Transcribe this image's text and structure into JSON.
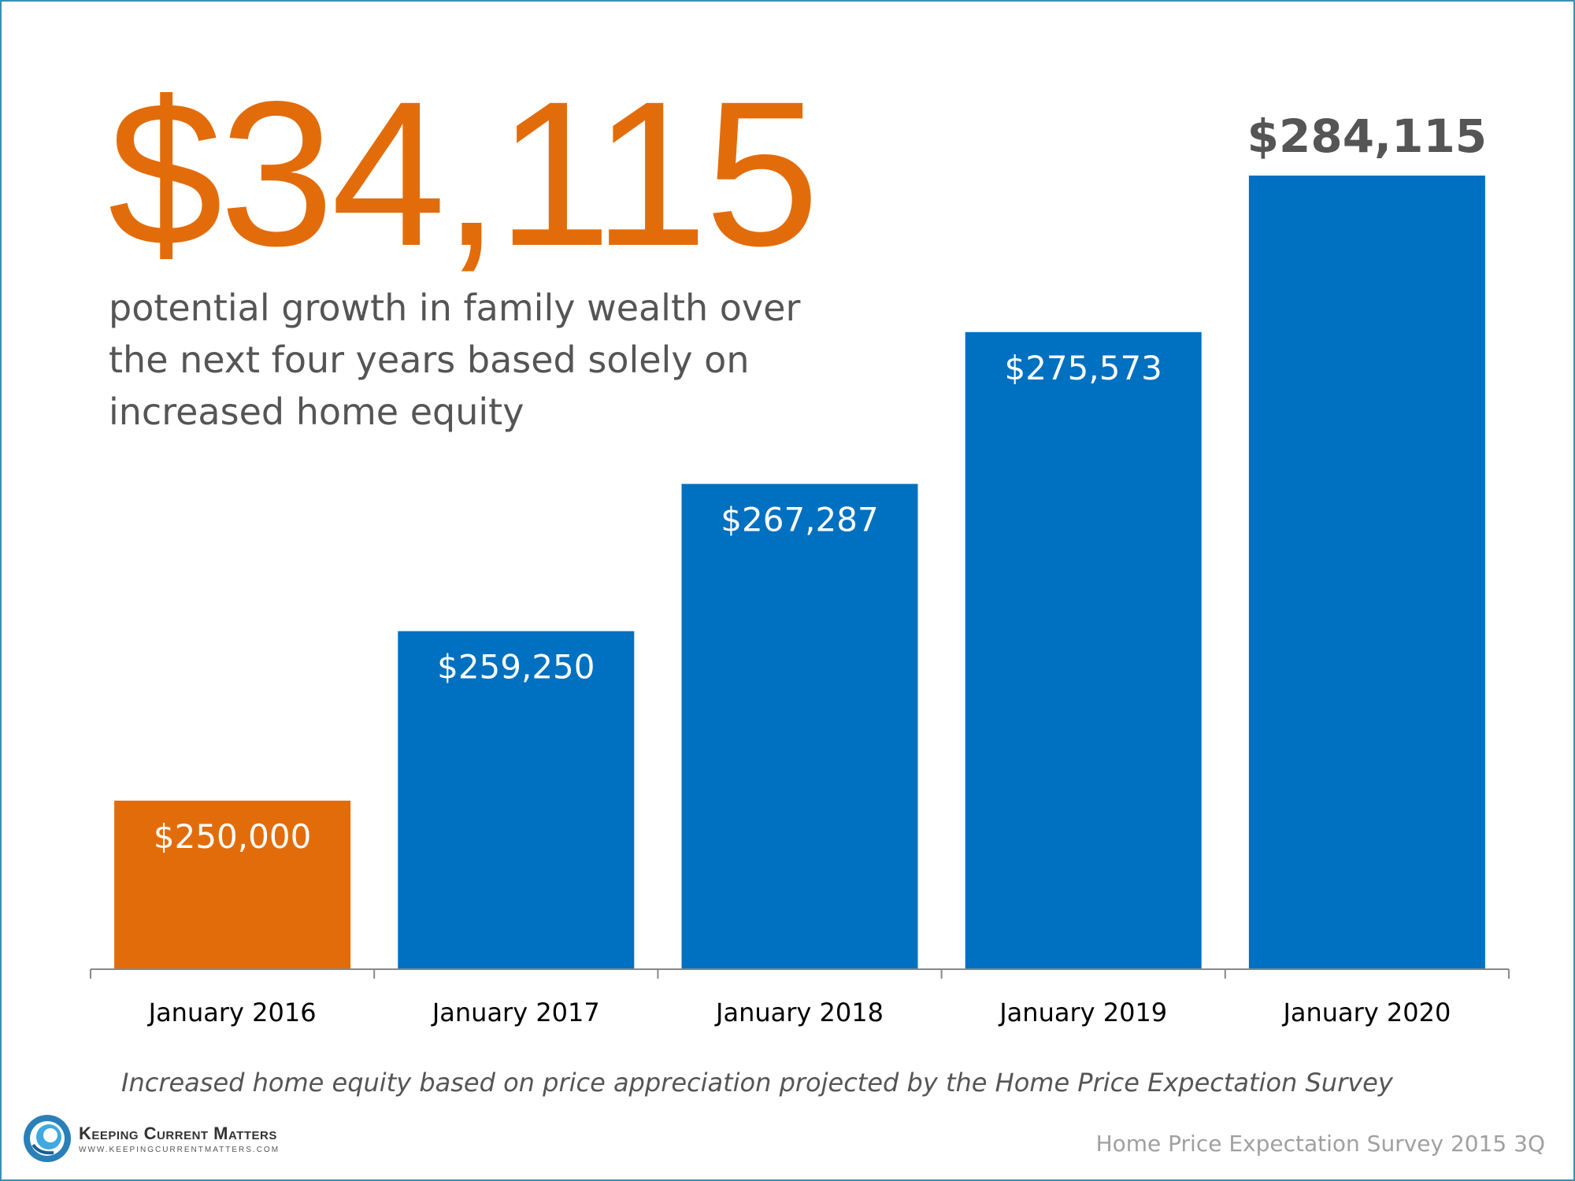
{
  "headline": {
    "amount": "$34,115",
    "lines": [
      "potential growth in family wealth over",
      "the next four years based solely on",
      "increased home equity"
    ]
  },
  "chart_data": {
    "type": "bar",
    "categories": [
      "January 2016",
      "January 2017",
      "January 2018",
      "January 2019",
      "January 2020"
    ],
    "values": [
      250000,
      259250,
      267287,
      275573,
      284115
    ],
    "value_labels": [
      "$250,000",
      "$259,250",
      "$267,287",
      "$275,573",
      "$284,115"
    ],
    "bar_colors": [
      "#e36c0a",
      "#0070c0",
      "#0070c0",
      "#0070c0",
      "#0070c0"
    ],
    "title": "",
    "xlabel": "",
    "ylabel": ""
  },
  "footnote": "Increased home equity based on price appreciation projected by the Home Price Expectation Survey",
  "source": "Home Price Expectation Survey 2015 3Q",
  "logo": {
    "name": "Keeping Current Matters",
    "url": "WWW.KEEPINGCURRENTMATTERS.COM",
    "icon": "swirl-logo-icon"
  },
  "colors": {
    "orange": "#e36c0a",
    "blue": "#0070c0",
    "gray_text": "#555555",
    "frame": "#3a8fb7"
  }
}
